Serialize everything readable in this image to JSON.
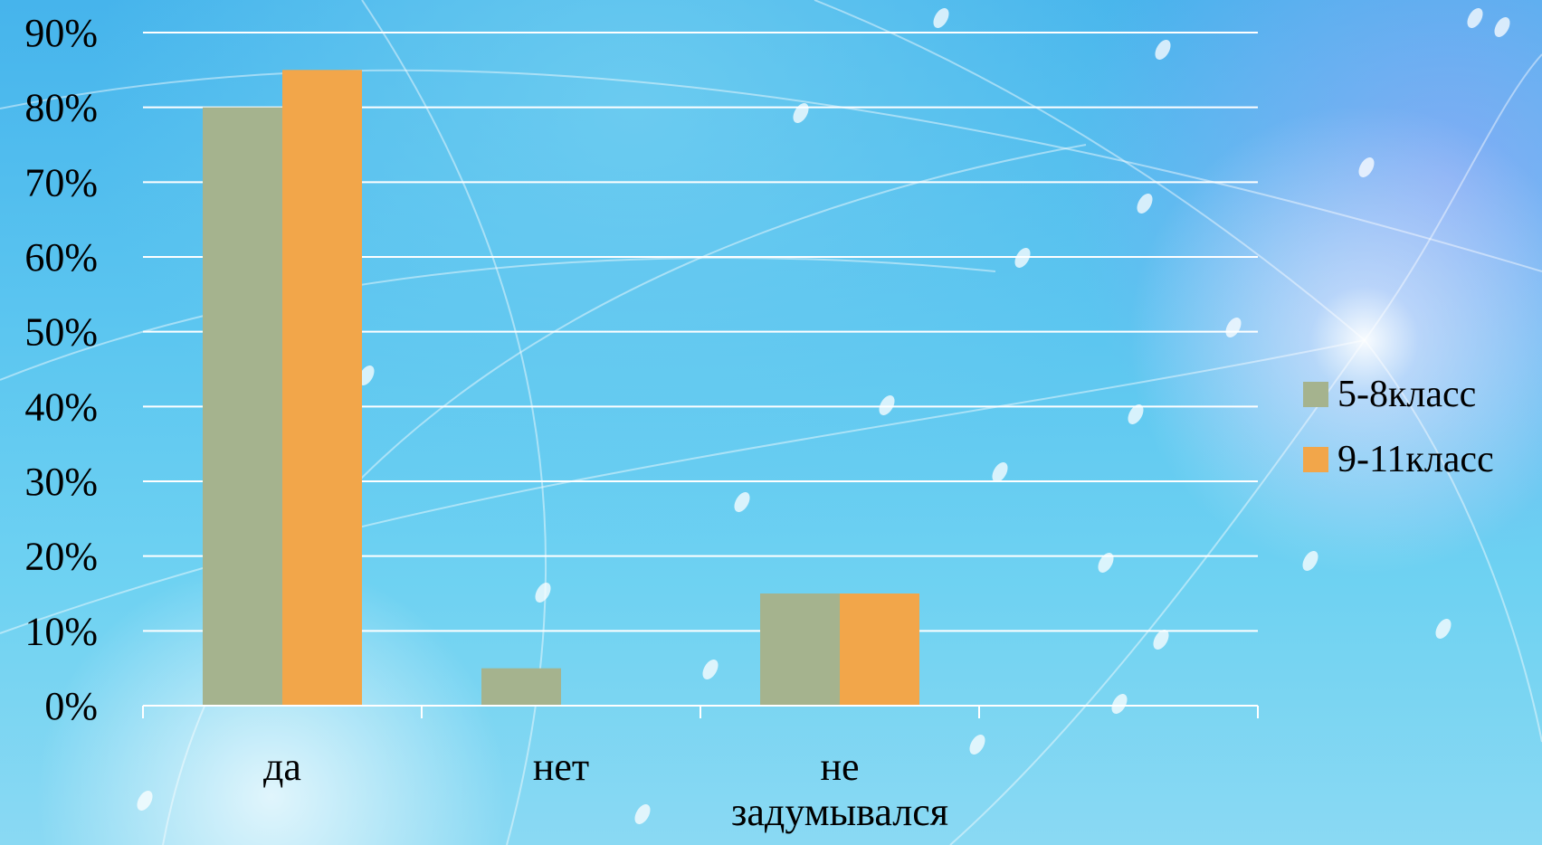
{
  "chart_data": {
    "type": "bar",
    "categories": [
      "да",
      "нет",
      "не задумывался"
    ],
    "category_lines": [
      [
        "да"
      ],
      [
        "нет"
      ],
      [
        "не",
        "задумывался"
      ]
    ],
    "series": [
      {
        "name": "5-8класс",
        "values": [
          80,
          5,
          15
        ],
        "color": "#a5b38e"
      },
      {
        "name": "9-11класс",
        "values": [
          85,
          0,
          15
        ],
        "color": "#f2a64a"
      }
    ],
    "y_ticks": [
      "0%",
      "10%",
      "20%",
      "30%",
      "40%",
      "50%",
      "60%",
      "70%",
      "80%",
      "90%"
    ],
    "ylim": [
      0,
      90
    ],
    "y_unit": "%",
    "grid": true,
    "legend_position": "right",
    "title": "",
    "xlabel": "",
    "ylabel": ""
  },
  "colors": {
    "gridline": "#ffffff",
    "text": "#000000"
  }
}
